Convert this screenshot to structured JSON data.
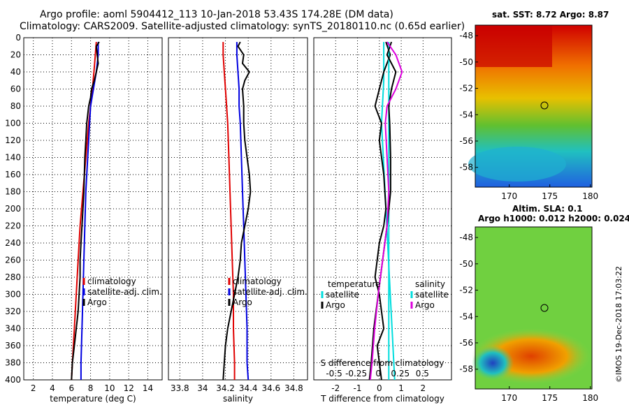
{
  "header": {
    "line1": "Argo profile: aoml 5904412_113 10-Jan-2018 53.43S 174.28E (DM data)",
    "line2": "Climatology: CARS2009. Satellite-adjusted climatology: synTS_20180110.nc (0.65d earlier)"
  },
  "colors": {
    "climatology": "#e00000",
    "satellite": "#0000e0",
    "argo": "#000000",
    "sat_s": "#00dddd",
    "sat_t_diff": "#dd00dd"
  },
  "chart_data": [
    {
      "id": "temperature",
      "type": "line",
      "xlabel": "temperature (deg C)",
      "xlim": [
        1,
        15.5
      ],
      "xticks": [
        2,
        4,
        6,
        8,
        10,
        12,
        14
      ],
      "ylim": [
        0,
        400
      ],
      "yticks": [
        0,
        20,
        40,
        60,
        80,
        100,
        120,
        140,
        160,
        180,
        200,
        220,
        240,
        260,
        280,
        300,
        320,
        340,
        360,
        380,
        400
      ],
      "legend": [
        "climatology",
        "satellite-adj. clim.",
        "Argo"
      ],
      "series": [
        {
          "name": "climatology",
          "depth": [
            5,
            20,
            40,
            60,
            80,
            100,
            140,
            180,
            220,
            260,
            300,
            340,
            380,
            400
          ],
          "values": [
            8.6,
            8.5,
            8.35,
            8.2,
            8.0,
            7.8,
            7.5,
            7.2,
            6.9,
            6.7,
            6.5,
            6.3,
            6.1,
            6.0
          ]
        },
        {
          "name": "satellite-adj. clim.",
          "depth": [
            5,
            20,
            40,
            60,
            80,
            100,
            140,
            180,
            220,
            260,
            300,
            340,
            380,
            400
          ],
          "values": [
            8.8,
            8.8,
            8.6,
            8.3,
            8.0,
            7.9,
            7.7,
            7.5,
            7.4,
            7.3,
            7.2,
            7.1,
            7.0,
            7.0
          ]
        },
        {
          "name": "Argo",
          "depth": [
            5,
            10,
            20,
            30,
            40,
            50,
            60,
            70,
            80,
            90,
            100,
            120,
            140,
            160,
            180,
            200,
            220,
            240,
            260,
            280,
            300,
            320,
            340,
            360,
            380,
            400
          ],
          "values": [
            8.9,
            8.6,
            8.7,
            8.8,
            8.6,
            8.4,
            8.1,
            8.0,
            7.8,
            7.7,
            7.6,
            7.5,
            7.4,
            7.35,
            7.3,
            7.2,
            7.1,
            7.0,
            6.9,
            6.9,
            6.8,
            6.7,
            6.5,
            6.3,
            6.1,
            6.0
          ]
        }
      ]
    },
    {
      "id": "salinity",
      "type": "line",
      "xlabel": "salinity",
      "xlim": [
        33.7,
        34.92
      ],
      "xticks": [
        33.8,
        34,
        34.2,
        34.4,
        34.6,
        34.8
      ],
      "xticklabels": [
        "33.8",
        "34",
        "34.2",
        "34.4",
        "34.6",
        "34.8"
      ],
      "ylim": [
        0,
        400
      ],
      "legend": [
        "climatology",
        "satellite-adj. clim.",
        "Argo"
      ],
      "series": [
        {
          "name": "climatology",
          "depth": [
            5,
            20,
            40,
            60,
            80,
            100,
            140,
            180,
            220,
            260,
            300,
            340,
            380,
            400
          ],
          "values": [
            34.18,
            34.18,
            34.19,
            34.2,
            34.21,
            34.22,
            34.23,
            34.24,
            34.25,
            34.26,
            34.27,
            34.27,
            34.28,
            34.28
          ]
        },
        {
          "name": "satellite-adj. clim.",
          "depth": [
            5,
            20,
            40,
            60,
            80,
            100,
            140,
            180,
            220,
            260,
            300,
            340,
            380,
            400
          ],
          "values": [
            34.3,
            34.3,
            34.31,
            34.32,
            34.32,
            34.33,
            34.34,
            34.35,
            34.36,
            34.37,
            34.38,
            34.39,
            34.39,
            34.4
          ]
        },
        {
          "name": "Argo",
          "depth": [
            5,
            10,
            20,
            30,
            40,
            50,
            60,
            80,
            100,
            120,
            140,
            160,
            180,
            200,
            220,
            240,
            260,
            280,
            300,
            320,
            340,
            360,
            380,
            400
          ],
          "values": [
            34.33,
            34.31,
            34.36,
            34.35,
            34.41,
            34.37,
            34.35,
            34.36,
            34.36,
            34.37,
            34.39,
            34.41,
            34.42,
            34.4,
            34.37,
            34.34,
            34.33,
            34.31,
            34.28,
            34.25,
            34.22,
            34.2,
            34.19,
            34.18
          ]
        }
      ]
    },
    {
      "id": "difference",
      "type": "line",
      "xlabel": "T difference from climatology",
      "xlim": [
        -3,
        3.3
      ],
      "xticks": [
        -2,
        -1,
        0,
        1,
        2
      ],
      "ylim": [
        0,
        400
      ],
      "top_axis_label": "S difference from climatology",
      "top_ticks": [
        -0.5,
        -0.25,
        0,
        0.25,
        0.5
      ],
      "top_ticklabels": [
        "-0.5",
        "-0.25",
        "0",
        "0.25",
        "0.5"
      ],
      "legend_temperature": [
        "temperature",
        "satellite",
        "Argo"
      ],
      "legend_salinity": [
        "salinity",
        "satellite",
        "Argo"
      ],
      "series": [
        {
          "name": "T satellite",
          "depth": [
            5,
            50,
            100,
            150,
            200,
            250,
            300,
            350,
            400
          ],
          "values": [
            0.2,
            0.2,
            0.1,
            0.2,
            0.3,
            0.4,
            0.5,
            0.6,
            0.7
          ]
        },
        {
          "name": "T Argo",
          "depth": [
            5,
            20,
            40,
            60,
            80,
            100,
            120,
            160,
            200,
            220,
            240,
            260,
            280,
            300,
            320,
            340,
            360,
            380,
            400
          ],
          "values": [
            0.3,
            0.5,
            0.2,
            0.0,
            -0.2,
            0.1,
            0.0,
            0.2,
            0.3,
            0.2,
            0.0,
            -0.1,
            -0.2,
            0.0,
            0.1,
            0.2,
            -0.1,
            0.0,
            0.1
          ]
        },
        {
          "name": "S satellite",
          "depth": [
            5,
            50,
            100,
            200,
            300,
            400
          ],
          "values": [
            0.12,
            0.12,
            0.12,
            0.12,
            0.12,
            0.12
          ]
        },
        {
          "name": "S Argo",
          "depth": [
            5,
            20,
            40,
            60,
            80,
            100,
            140,
            180,
            220,
            260,
            300,
            340,
            380,
            400
          ],
          "values": [
            0.15,
            0.1,
            0.2,
            0.15,
            0.12,
            0.13,
            0.14,
            0.14,
            0.1,
            0.05,
            0.0,
            -0.05,
            -0.08,
            -0.1
          ]
        },
        {
          "name": "S satellite adj",
          "depth": [
            5,
            20,
            40,
            60,
            80,
            100,
            140,
            180,
            220,
            260,
            300,
            340,
            380,
            400
          ],
          "values": [
            0.1,
            0.2,
            0.27,
            0.2,
            0.1,
            0.08,
            0.1,
            0.12,
            0.1,
            0.05,
            0.0,
            -0.04,
            -0.07,
            -0.09
          ]
        }
      ]
    }
  ],
  "maps": {
    "sst": {
      "title": "sat. SST: 8.72 Argo: 8.87",
      "xticks": [
        170,
        175,
        180
      ],
      "yticks": [
        -48,
        -50,
        -52,
        -54,
        -56,
        -58
      ]
    },
    "sla": {
      "title1": "Altim. SLA: 0.1",
      "title2": "Argo h1000: 0.012 h2000: 0.024",
      "xticks": [
        170,
        175,
        180
      ],
      "yticks": [
        -48,
        -50,
        -52,
        -54,
        -56,
        -58
      ]
    }
  },
  "footer": {
    "credit": "©IMOS 19-Dec-2018 17:03:22"
  }
}
